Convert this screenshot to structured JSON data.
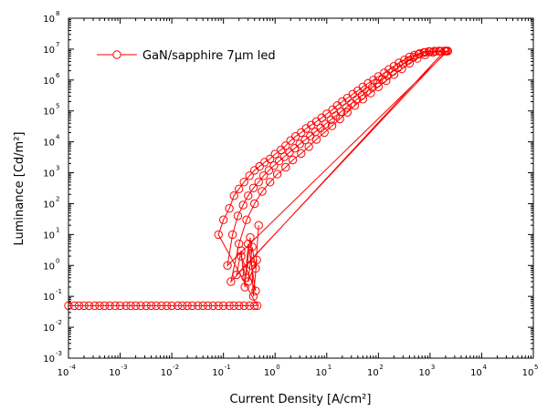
{
  "chart_data": {
    "type": "scatter",
    "title": "",
    "xlabel": "Current Density [A/cm²]",
    "ylabel": "Luminance [Cd/m²]",
    "xscale": "log",
    "yscale": "log",
    "xlim": [
      0.0001,
      100000
    ],
    "ylim": [
      0.001,
      100000000
    ],
    "x_ticks": [
      {
        "base": "10",
        "exp": "-4"
      },
      {
        "base": "10",
        "exp": "-3"
      },
      {
        "base": "10",
        "exp": "-2"
      },
      {
        "base": "10",
        "exp": "-1"
      },
      {
        "base": "10",
        "exp": "0"
      },
      {
        "base": "10",
        "exp": "1"
      },
      {
        "base": "10",
        "exp": "2"
      },
      {
        "base": "10",
        "exp": "3"
      },
      {
        "base": "10",
        "exp": "4"
      },
      {
        "base": "10",
        "exp": "5"
      }
    ],
    "y_ticks": [
      {
        "base": "10",
        "exp": "-3"
      },
      {
        "base": "10",
        "exp": "-2"
      },
      {
        "base": "10",
        "exp": "-1"
      },
      {
        "base": "10",
        "exp": "0"
      },
      {
        "base": "10",
        "exp": "1"
      },
      {
        "base": "10",
        "exp": "2"
      },
      {
        "base": "10",
        "exp": "3"
      },
      {
        "base": "10",
        "exp": "4"
      },
      {
        "base": "10",
        "exp": "5"
      },
      {
        "base": "10",
        "exp": "6"
      },
      {
        "base": "10",
        "exp": "7"
      },
      {
        "base": "10",
        "exp": "8"
      }
    ],
    "grid": false,
    "legend_position": "top-left",
    "series": [
      {
        "name": "GaN/sapphire 7µm led",
        "color": "#ff0000",
        "marker": "open-circle",
        "x": [
          0.0001,
          0.00013,
          0.00016,
          0.0002,
          0.00025,
          0.00032,
          0.0004,
          0.0005,
          0.00063,
          0.0008,
          0.001,
          0.0013,
          0.0016,
          0.002,
          0.0025,
          0.0032,
          0.004,
          0.005,
          0.0063,
          0.008,
          0.01,
          0.013,
          0.016,
          0.02,
          0.025,
          0.032,
          0.04,
          0.05,
          0.063,
          0.08,
          0.1,
          0.13,
          0.16,
          0.2,
          0.25,
          0.32,
          0.4,
          0.45,
          0.08,
          0.1,
          0.13,
          0.16,
          0.2,
          0.25,
          0.32,
          0.4,
          0.5,
          0.63,
          0.8,
          1.0,
          1.3,
          1.6,
          2.0,
          2.5,
          3.2,
          4.0,
          5.0,
          6.3,
          8.0,
          10,
          13,
          16,
          20,
          25,
          32,
          40,
          50,
          63,
          80,
          100,
          130,
          160,
          200,
          250,
          320,
          400,
          500,
          630,
          800,
          1000,
          1300,
          1600,
          2000,
          2200,
          0.12,
          0.15,
          0.19,
          0.24,
          0.3,
          0.38,
          0.48,
          0.6,
          0.76,
          0.95,
          1.2,
          1.5,
          1.9,
          2.4,
          3.0,
          3.8,
          4.8,
          6.0,
          7.6,
          9.5,
          12,
          15,
          19,
          24,
          30,
          38,
          48,
          60,
          76,
          95,
          120,
          150,
          190,
          240,
          300,
          380,
          480,
          600,
          760,
          950,
          1200,
          1500,
          1900,
          0.14,
          0.2,
          0.28,
          0.4,
          0.56,
          0.8,
          1.1,
          1.6,
          2.2,
          3.2,
          4.5,
          6.3,
          9,
          12.6,
          18,
          25,
          35,
          50,
          71,
          100,
          141,
          200,
          283,
          400,
          566,
          800,
          1131,
          1600,
          2100,
          0.18,
          0.22,
          0.26,
          0.3,
          0.35,
          0.42,
          0.22,
          0.27,
          0.33,
          0.38,
          0.44,
          0.3,
          0.36,
          0.42,
          0.48
        ],
        "y": [
          0.05,
          0.05,
          0.05,
          0.05,
          0.05,
          0.05,
          0.05,
          0.05,
          0.05,
          0.05,
          0.05,
          0.05,
          0.05,
          0.05,
          0.05,
          0.05,
          0.05,
          0.05,
          0.05,
          0.05,
          0.05,
          0.05,
          0.05,
          0.05,
          0.05,
          0.05,
          0.05,
          0.05,
          0.05,
          0.05,
          0.05,
          0.05,
          0.05,
          0.05,
          0.05,
          0.05,
          0.05,
          0.05,
          10,
          30,
          70,
          180,
          300,
          500,
          800,
          1200,
          1600,
          2200,
          2800,
          4000,
          5500,
          7500,
          11000,
          15000,
          20000,
          27000,
          35000,
          45000,
          60000,
          80000,
          110000,
          150000,
          200000,
          260000,
          350000,
          450000,
          600000,
          780000,
          1000000,
          1300000,
          1700000,
          2200000,
          2800000,
          3600000,
          4500000,
          5600000,
          6500000,
          7200000,
          7800000,
          8200000,
          8500000,
          8600000,
          8700000,
          8700000,
          1,
          10,
          40,
          90,
          180,
          320,
          500,
          800,
          1200,
          1700,
          2400,
          3300,
          4600,
          6200,
          8500,
          11500,
          15500,
          21000,
          28000,
          38000,
          52000,
          70000,
          95000,
          130000,
          175000,
          235000,
          320000,
          430000,
          580000,
          780000,
          1050000,
          1400000,
          1900000,
          2500000,
          3300000,
          4300000,
          5500000,
          6800000,
          7800000,
          8400000,
          8600000,
          8700000,
          8700000,
          0.3,
          5,
          30,
          100,
          250,
          500,
          900,
          1500,
          2600,
          4200,
          7000,
          12000,
          20000,
          33000,
          55000,
          90000,
          150000,
          240000,
          380000,
          600000,
          950000,
          1500000,
          2300000,
          3500000,
          5000000,
          6500000,
          7800000,
          8500000,
          8700000,
          0.5,
          3,
          0.2,
          5,
          1,
          0.15,
          2,
          0.4,
          8,
          0.1,
          1.5,
          0.3,
          4,
          0.8,
          20
        ]
      }
    ]
  }
}
